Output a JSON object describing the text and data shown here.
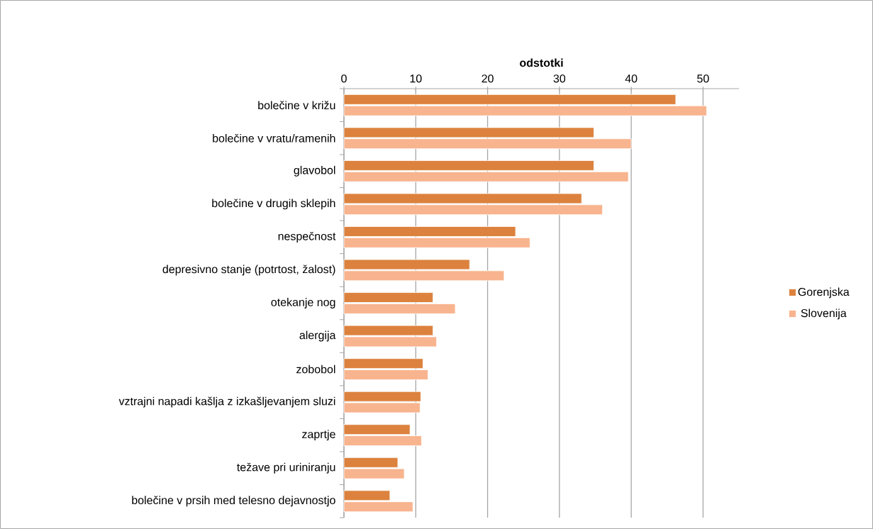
{
  "chart_data": {
    "type": "bar",
    "orientation": "horizontal",
    "xlabel": "odstotki",
    "categories": [
      "bolečine v križu",
      "bolečine v vratu/ramenih",
      "glavobol",
      "bolečine v drugih sklepih",
      "nespečnost",
      "depresivno stanje (potrtost, žalost)",
      "otekanje nog",
      "alergija",
      "zobobol",
      "vztrajni napadi kašlja z izkašljevanjem sluzi",
      "zaprtje",
      "težave pri uriniranju",
      "bolečine v prsih med telesno dejavnostjo"
    ],
    "series": [
      {
        "name": "Gorenjska",
        "color": "#dc823e",
        "values": [
          46.2,
          34.8,
          34.8,
          33.1,
          23.9,
          17.5,
          12.4,
          12.4,
          11.0,
          10.7,
          9.2,
          7.5,
          6.4
        ]
      },
      {
        "name": "Slovenija",
        "color": "#f8b48e",
        "values": [
          50.5,
          40.0,
          39.6,
          36.0,
          25.9,
          22.3,
          15.5,
          12.9,
          11.7,
          10.6,
          10.8,
          8.4,
          9.6
        ]
      }
    ],
    "xlim": [
      0,
      55
    ],
    "xticks": [
      0,
      10,
      20,
      30,
      40,
      50
    ],
    "grid": "x",
    "legend": "right"
  }
}
